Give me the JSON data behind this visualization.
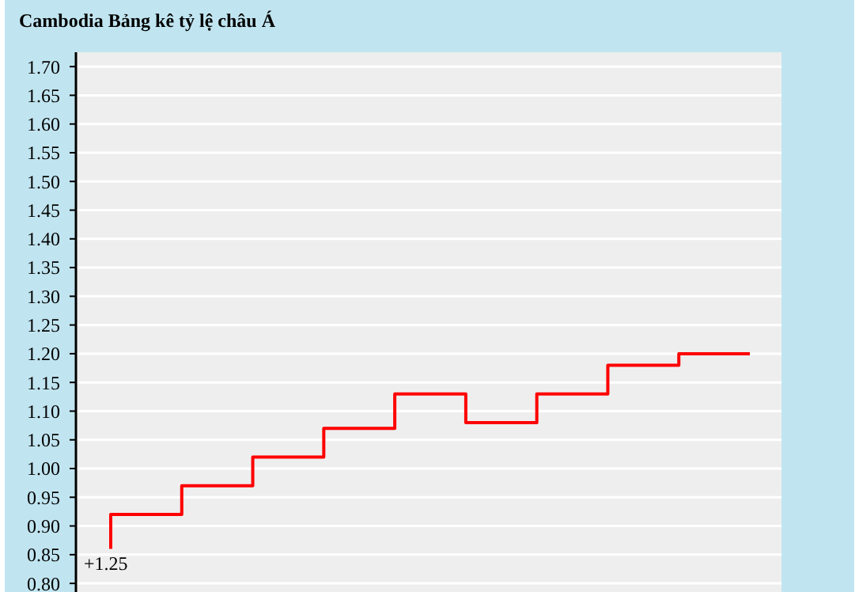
{
  "chart_data": {
    "type": "step",
    "title": "Cambodia Bảng kê tỷ lệ châu Á",
    "categories": [
      null,
      null,
      null,
      null,
      null,
      null,
      null,
      null,
      null,
      null
    ],
    "series": [
      {
        "color": "#ff0000",
        "values": [
          0.86,
          0.92,
          0.97,
          1.02,
          1.07,
          1.13,
          1.08,
          1.13,
          1.18,
          1.2
        ]
      }
    ],
    "ylim": [
      0.785,
      1.725
    ],
    "yticks": [
      {
        "value": 0.8,
        "label": "0.80"
      },
      {
        "value": 0.85,
        "label": "0.85"
      },
      {
        "value": 0.9,
        "label": "0.90"
      },
      {
        "value": 0.95,
        "label": "0.95"
      },
      {
        "value": 1.0,
        "label": "1.00"
      },
      {
        "value": 1.05,
        "label": "1.05"
      },
      {
        "value": 1.1,
        "label": "1.10"
      },
      {
        "value": 1.15,
        "label": "1.15"
      },
      {
        "value": 1.2,
        "label": "1.20"
      },
      {
        "value": 1.25,
        "label": "1.25"
      },
      {
        "value": 1.3,
        "label": "1.30"
      },
      {
        "value": 1.35,
        "label": "1.35"
      },
      {
        "value": 1.4,
        "label": "1.40"
      },
      {
        "value": 1.45,
        "label": "1.45"
      },
      {
        "value": 1.5,
        "label": "1.50"
      },
      {
        "value": 1.55,
        "label": "1.55"
      },
      {
        "value": 1.6,
        "label": "1.60"
      },
      {
        "value": 1.65,
        "label": "1.65"
      },
      {
        "value": 1.7,
        "label": "1.70"
      }
    ],
    "grid": "y",
    "tick_labels": "y",
    "annotations": [
      "+1.25"
    ]
  }
}
